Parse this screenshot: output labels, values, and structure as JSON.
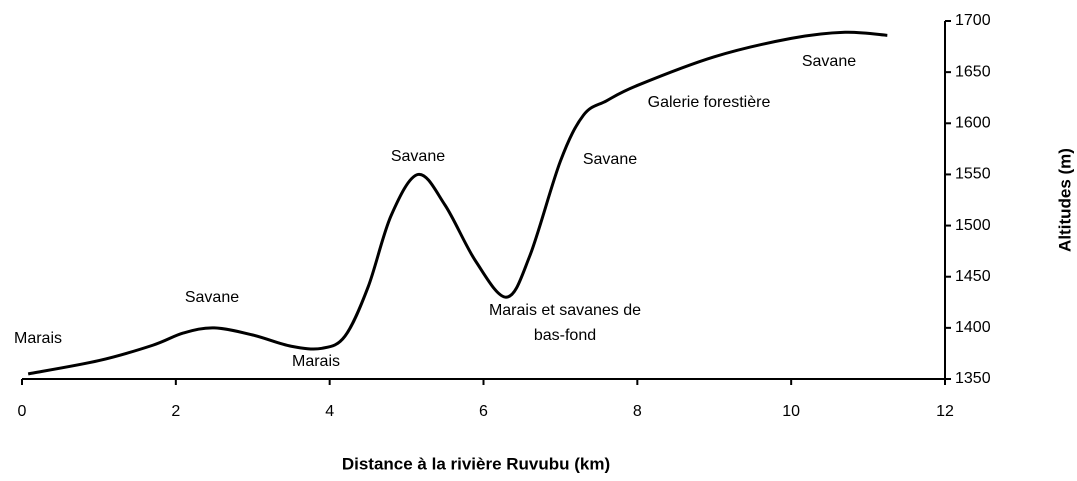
{
  "chart_data": {
    "type": "line",
    "x_label": "Distance à la rivière Ruvubu (km)",
    "y_label": "Altitudes (m)",
    "x": [
      0.08,
      1,
      1.7,
      2.1,
      2.5,
      3,
      3.5,
      3.9,
      4.2,
      4.5,
      4.8,
      5.15,
      5.5,
      5.9,
      6.3,
      6.6,
      7.0,
      7.3,
      7.6,
      8,
      9,
      10,
      10.7,
      11.25
    ],
    "series": [
      {
        "name": "Altitude",
        "color": "#000000",
        "values": [
          1355,
          1368,
          1383,
          1395,
          1400,
          1393,
          1382,
          1380,
          1392,
          1440,
          1510,
          1550,
          1520,
          1465,
          1430,
          1470,
          1563,
          1608,
          1622,
          1637,
          1665,
          1683,
          1689,
          1686
        ]
      }
    ],
    "xlim": [
      0,
      12
    ],
    "xticks": [
      0,
      2,
      4,
      6,
      8,
      10,
      12
    ],
    "ylim": [
      1350,
      1700
    ],
    "yticks": [
      1350,
      1400,
      1450,
      1500,
      1550,
      1600,
      1650,
      1700
    ],
    "y_axis_side": "right",
    "grid": false,
    "annotations": [
      [
        "Marais"
      ],
      [
        "Savane"
      ],
      [
        "Marais"
      ],
      [
        "Savane"
      ],
      [
        "Marais et savanes de",
        "bas-fond"
      ],
      [
        "Savane"
      ],
      [
        "Galerie forestière"
      ],
      [
        "Savane"
      ]
    ]
  }
}
